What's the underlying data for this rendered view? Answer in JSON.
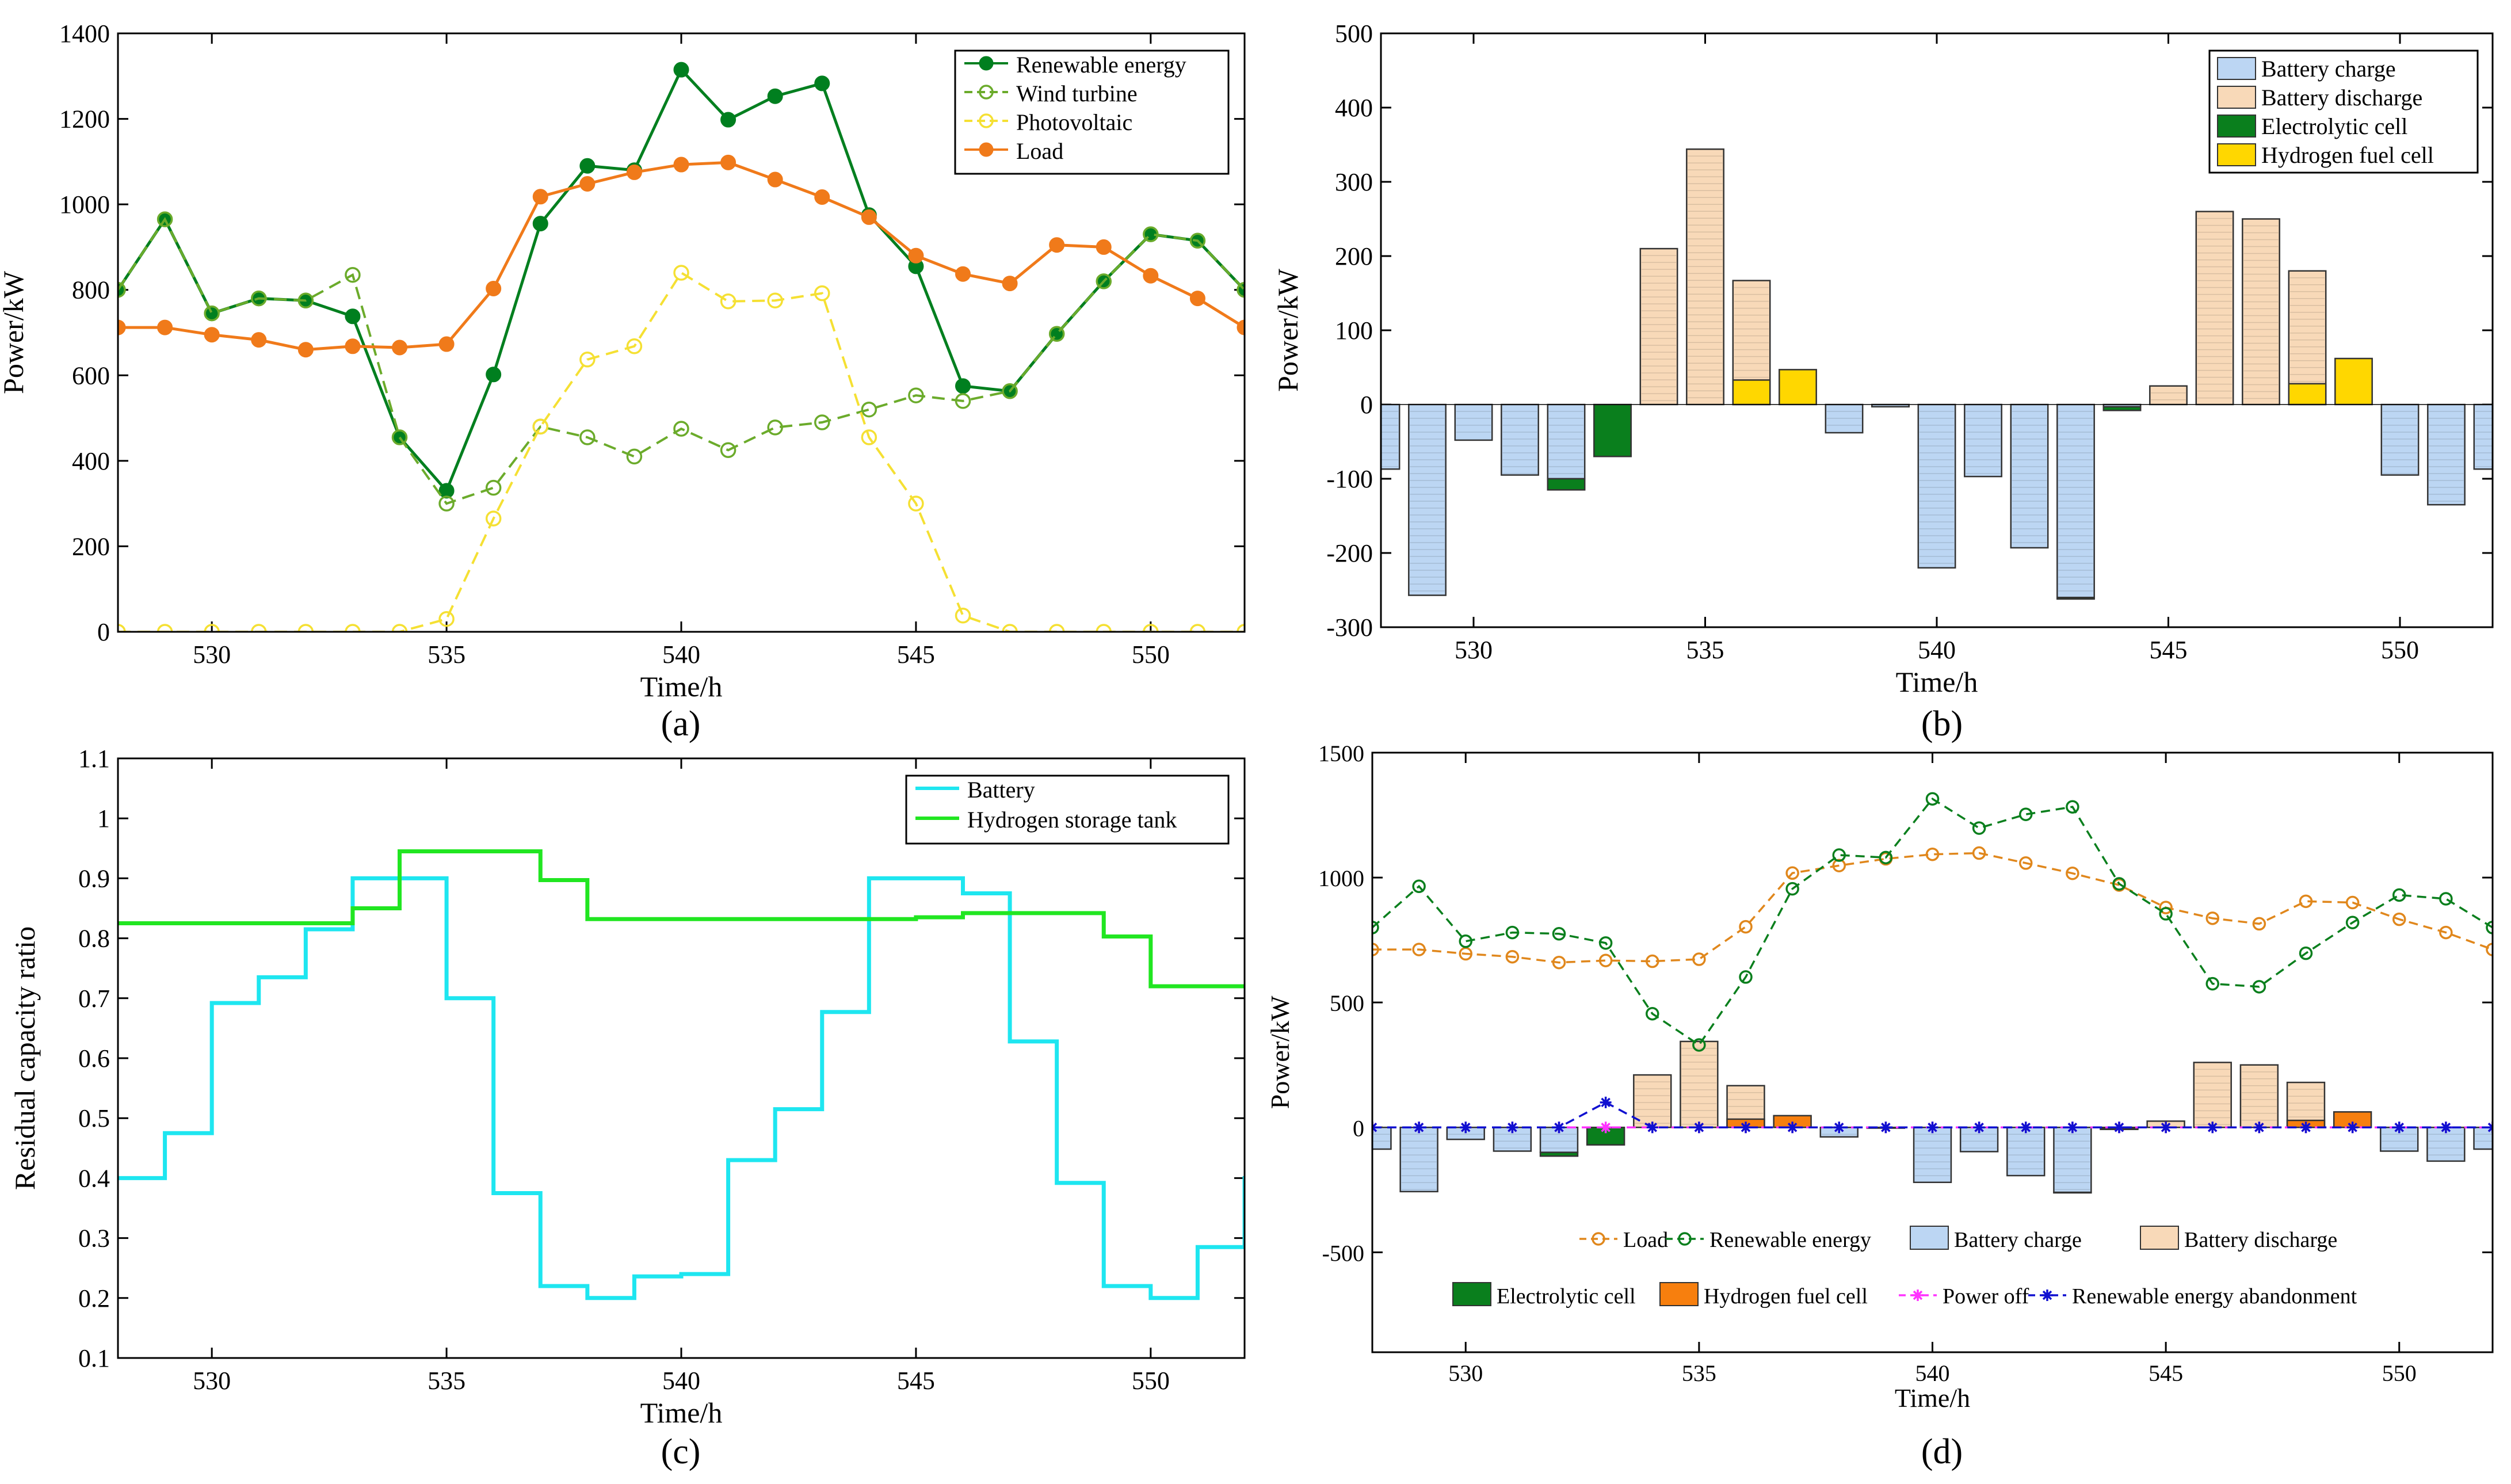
{
  "panels": {
    "a": {
      "label": "(a)"
    },
    "b": {
      "label": "(b)"
    },
    "c": {
      "label": "(c)"
    },
    "d": {
      "label": "(d)"
    }
  },
  "chart_data": [
    {
      "id": "a",
      "type": "line",
      "xlabel": "Time/h",
      "ylabel": "Power/kW",
      "xlim": [
        528,
        552
      ],
      "ylim": [
        0,
        1400
      ],
      "xticks": [
        530,
        535,
        540,
        545,
        550
      ],
      "yticks": [
        0,
        200,
        400,
        600,
        800,
        1000,
        1200,
        1400
      ],
      "legend": [
        "Renewable energy",
        "Wind turbine",
        "Photovoltaic",
        "Load"
      ],
      "x": [
        528,
        529,
        530,
        531,
        532,
        533,
        534,
        535,
        536,
        537,
        538,
        539,
        540,
        541,
        542,
        543,
        544,
        545,
        546,
        547,
        548,
        549,
        550,
        551,
        552
      ],
      "series": [
        {
          "name": "Renewable energy",
          "color": "#007f1f",
          "dash": false,
          "marker": "filled",
          "values": [
            800,
            965,
            745,
            780,
            775,
            738,
            455,
            330,
            602,
            955,
            1090,
            1080,
            1315,
            1198,
            1253,
            1283,
            975,
            855,
            575,
            563,
            697,
            820,
            930,
            915,
            800
          ]
        },
        {
          "name": "Wind turbine",
          "color": "#6bab2b",
          "dash": true,
          "marker": "open",
          "values": [
            800,
            965,
            745,
            780,
            775,
            835,
            455,
            300,
            337,
            480,
            455,
            410,
            475,
            425,
            478,
            490,
            520,
            553,
            540,
            563,
            697,
            820,
            930,
            915,
            800
          ]
        },
        {
          "name": "Photovoltaic",
          "color": "#f5e033",
          "dash": true,
          "marker": "open",
          "values": [
            0,
            0,
            0,
            0,
            0,
            0,
            0,
            30,
            265,
            480,
            637,
            668,
            840,
            773,
            775,
            792,
            455,
            300,
            38,
            0,
            0,
            0,
            0,
            0,
            0
          ]
        },
        {
          "name": "Load",
          "color": "#f07a1a",
          "dash": false,
          "marker": "filled",
          "values": [
            712,
            712,
            695,
            683,
            660,
            668,
            665,
            673,
            803,
            1018,
            1048,
            1075,
            1093,
            1098,
            1058,
            1017,
            970,
            880,
            837,
            815,
            905,
            900,
            833,
            780,
            712
          ]
        }
      ]
    },
    {
      "id": "b",
      "type": "bar",
      "xlabel": "Time/h",
      "ylabel": "Power/kW",
      "xlim": [
        528,
        552
      ],
      "ylim": [
        -300,
        500
      ],
      "xticks": [
        530,
        535,
        540,
        545,
        550
      ],
      "yticks": [
        -300,
        -200,
        -100,
        0,
        100,
        200,
        300,
        400,
        500
      ],
      "legend": [
        "Battery charge",
        "Battery discharge",
        "Electrolytic cell",
        "Hydrogen fuel cell"
      ],
      "x": [
        528,
        529,
        530,
        531,
        532,
        533,
        534,
        535,
        536,
        537,
        538,
        539,
        540,
        541,
        542,
        543,
        544,
        545,
        546,
        547,
        548,
        549,
        550,
        551,
        552
      ],
      "series": [
        {
          "name": "Battery charge",
          "color": "#bcd6f3",
          "values": [
            -87,
            -257,
            -48,
            -95,
            -100,
            0,
            0,
            0,
            0,
            0,
            -38,
            -3,
            -220,
            -97,
            -193,
            -260,
            -3,
            0,
            0,
            0,
            0,
            0,
            -95,
            -135,
            -87
          ]
        },
        {
          "name": "Battery discharge",
          "color": "#f8d9b8",
          "values": [
            0,
            0,
            0,
            0,
            0,
            0,
            210,
            344,
            167,
            0,
            0,
            0,
            0,
            0,
            0,
            0,
            0,
            25,
            260,
            250,
            180,
            0,
            0,
            0,
            0
          ]
        },
        {
          "name": "Electrolytic cell",
          "color": "#0a7f1d",
          "values": [
            0,
            0,
            0,
            0,
            -15,
            -70,
            0,
            0,
            0,
            0,
            0,
            0,
            0,
            0,
            0,
            -2,
            -5,
            0,
            0,
            0,
            0,
            0,
            0,
            0,
            0
          ]
        },
        {
          "name": "Hydrogen fuel cell",
          "color": "#ffd700",
          "values": [
            0,
            0,
            0,
            0,
            0,
            0,
            0,
            0,
            33,
            47,
            0,
            0,
            0,
            0,
            0,
            0,
            0,
            0,
            0,
            0,
            28,
            62,
            0,
            0,
            0
          ]
        }
      ]
    },
    {
      "id": "c",
      "type": "line",
      "xlabel": "Time/h",
      "ylabel": "Residual capacity ratio",
      "xlim": [
        528,
        552
      ],
      "ylim": [
        0.1,
        1.1
      ],
      "xticks": [
        530,
        535,
        540,
        545,
        550
      ],
      "yticks": [
        0.1,
        0.2,
        0.3,
        0.4,
        0.5,
        0.6,
        0.7,
        0.8,
        0.9,
        1,
        1.1
      ],
      "legend": [
        "Battery",
        "Hydrogen storage tank"
      ],
      "x": [
        528,
        529,
        530,
        531,
        532,
        533,
        534,
        535,
        536,
        537,
        538,
        539,
        540,
        541,
        542,
        543,
        544,
        545,
        546,
        547,
        548,
        549,
        550,
        551,
        552
      ],
      "series": [
        {
          "name": "Battery",
          "color": "#1ee6f0",
          "step": true,
          "values": [
            0.4,
            0.475,
            0.692,
            0.735,
            0.815,
            0.9,
            0.9,
            0.7,
            0.375,
            0.22,
            0.2,
            0.236,
            0.24,
            0.43,
            0.515,
            0.677,
            0.9,
            0.9,
            0.875,
            0.628,
            0.392,
            0.22,
            0.2,
            0.285,
            0.4
          ]
        },
        {
          "name": "Hydrogen storage tank",
          "color": "#21e621",
          "step": true,
          "values": [
            0.825,
            0.825,
            0.825,
            0.825,
            0.825,
            0.85,
            0.945,
            0.945,
            0.945,
            0.897,
            0.832,
            0.832,
            0.832,
            0.832,
            0.832,
            0.832,
            0.832,
            0.835,
            0.842,
            0.842,
            0.842,
            0.803,
            0.72,
            0.72,
            0.72
          ]
        }
      ]
    },
    {
      "id": "d",
      "type": "bar",
      "xlabel": "Time/h",
      "ylabel": "Power/kW",
      "xlim": [
        528,
        552
      ],
      "ylim": [
        -900,
        1500
      ],
      "xticks": [
        530,
        535,
        540,
        545,
        550
      ],
      "yticks": [
        -500,
        0,
        500,
        1000,
        1500
      ],
      "legend": [
        "Load",
        "Renewable energy",
        "Battery charge",
        "Battery discharge",
        "Electrolytic cell",
        "Hydrogen fuel cell",
        "Power off",
        "Renewable energy abandonment"
      ],
      "x": [
        528,
        529,
        530,
        531,
        532,
        533,
        534,
        535,
        536,
        537,
        538,
        539,
        540,
        541,
        542,
        543,
        544,
        545,
        546,
        547,
        548,
        549,
        550,
        551,
        552
      ],
      "bars": [
        {
          "name": "Battery charge",
          "color": "#bcd6f3",
          "values": [
            -87,
            -257,
            -48,
            -95,
            -100,
            0,
            0,
            0,
            0,
            0,
            -38,
            -3,
            -220,
            -97,
            -193,
            -260,
            -3,
            0,
            0,
            0,
            0,
            0,
            -95,
            -135,
            -87
          ]
        },
        {
          "name": "Battery discharge",
          "color": "#f8d9b8",
          "values": [
            0,
            0,
            0,
            0,
            0,
            0,
            210,
            344,
            167,
            0,
            0,
            0,
            0,
            0,
            0,
            0,
            0,
            25,
            260,
            250,
            180,
            0,
            0,
            0,
            0
          ]
        },
        {
          "name": "Electrolytic cell",
          "color": "#0a7f1d",
          "values": [
            0,
            0,
            0,
            0,
            -15,
            -70,
            0,
            0,
            0,
            0,
            0,
            0,
            0,
            0,
            0,
            -2,
            -5,
            0,
            0,
            0,
            0,
            0,
            0,
            0,
            0
          ]
        },
        {
          "name": "Hydrogen fuel cell",
          "color": "#f77f0e",
          "values": [
            0,
            0,
            0,
            0,
            0,
            0,
            0,
            0,
            33,
            47,
            0,
            0,
            0,
            0,
            0,
            0,
            0,
            0,
            0,
            0,
            28,
            62,
            0,
            0,
            0
          ]
        }
      ],
      "lines": [
        {
          "name": "Load",
          "color": "#e0871c",
          "dash": true,
          "marker": "open",
          "values": [
            712,
            712,
            695,
            683,
            660,
            668,
            665,
            673,
            803,
            1018,
            1048,
            1075,
            1093,
            1098,
            1058,
            1017,
            970,
            880,
            837,
            815,
            905,
            900,
            833,
            780,
            712
          ]
        },
        {
          "name": "Renewable energy",
          "color": "#0a7f1d",
          "dash": true,
          "marker": "open",
          "values": [
            800,
            965,
            745,
            780,
            775,
            738,
            455,
            330,
            602,
            955,
            1090,
            1080,
            1315,
            1198,
            1253,
            1283,
            975,
            855,
            575,
            563,
            697,
            820,
            930,
            915,
            800
          ]
        },
        {
          "name": "Power off",
          "color": "#ff33ff",
          "dash": true,
          "marker": "star",
          "values": [
            0,
            0,
            0,
            0,
            0,
            0,
            0,
            0,
            0,
            0,
            0,
            0,
            0,
            0,
            0,
            0,
            0,
            0,
            0,
            0,
            0,
            0,
            0,
            0,
            0
          ]
        },
        {
          "name": "Renewable energy abandonment",
          "color": "#1010d0",
          "dash": true,
          "marker": "star",
          "values": [
            0,
            0,
            0,
            0,
            0,
            100,
            0,
            0,
            0,
            0,
            0,
            0,
            0,
            0,
            0,
            0,
            0,
            0,
            0,
            0,
            0,
            0,
            0,
            0,
            0
          ]
        }
      ]
    }
  ]
}
